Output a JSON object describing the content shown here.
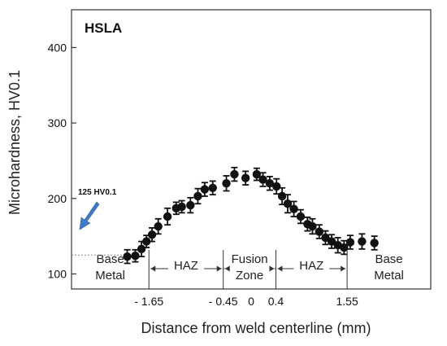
{
  "chart_data": {
    "type": "scatter",
    "title": "HSLA",
    "xlabel": "Distance from weld centerline (mm)",
    "ylabel": "Microhardness, HV0.1",
    "xlim": [
      -2.9,
      2.9
    ],
    "ylim": [
      80,
      450
    ],
    "y_ticks": [
      "100",
      "200",
      "300",
      "400"
    ],
    "x_tick_labels": [
      {
        "x": -1.65,
        "label": "- 1.65"
      },
      {
        "x": -0.45,
        "label": "- 0.45"
      },
      {
        "x": 0,
        "label": "0"
      },
      {
        "x": 0.4,
        "label": "0.4"
      },
      {
        "x": 1.55,
        "label": "1.55"
      }
    ],
    "regions": [
      {
        "name_lines": [
          "Base",
          "Metal"
        ],
        "from": -2.9,
        "to": -1.65
      },
      {
        "name_lines": [
          "HAZ"
        ],
        "from": -1.65,
        "to": -0.45
      },
      {
        "name_lines": [
          "Fusion",
          "Zone"
        ],
        "from": -0.45,
        "to": 0.4
      },
      {
        "name_lines": [
          "HAZ"
        ],
        "from": 0.4,
        "to": 1.55
      },
      {
        "name_lines": [
          "Base",
          "Metal"
        ],
        "from": 1.55,
        "to": 2.9
      }
    ],
    "reference_line": {
      "value": 125,
      "label": "125 HV0.1"
    },
    "points": [
      {
        "x": -2.0,
        "y": 123,
        "err": 9
      },
      {
        "x": -1.87,
        "y": 124,
        "err": 8
      },
      {
        "x": -1.77,
        "y": 133,
        "err": 10
      },
      {
        "x": -1.69,
        "y": 143,
        "err": 8
      },
      {
        "x": -1.6,
        "y": 152,
        "err": 9
      },
      {
        "x": -1.5,
        "y": 163,
        "err": 10
      },
      {
        "x": -1.35,
        "y": 176,
        "err": 11
      },
      {
        "x": -1.21,
        "y": 187,
        "err": 8
      },
      {
        "x": -1.12,
        "y": 189,
        "err": 8
      },
      {
        "x": -0.98,
        "y": 191,
        "err": 10
      },
      {
        "x": -0.86,
        "y": 203,
        "err": 10
      },
      {
        "x": -0.75,
        "y": 212,
        "err": 9
      },
      {
        "x": -0.62,
        "y": 214,
        "err": 9
      },
      {
        "x": -0.4,
        "y": 220,
        "err": 10
      },
      {
        "x": -0.27,
        "y": 232,
        "err": 9
      },
      {
        "x": -0.09,
        "y": 227,
        "err": 9
      },
      {
        "x": 0.09,
        "y": 232,
        "err": 8
      },
      {
        "x": 0.19,
        "y": 225,
        "err": 9
      },
      {
        "x": 0.3,
        "y": 220,
        "err": 9
      },
      {
        "x": 0.41,
        "y": 216,
        "err": 10
      },
      {
        "x": 0.5,
        "y": 203,
        "err": 11
      },
      {
        "x": 0.59,
        "y": 193,
        "err": 12
      },
      {
        "x": 0.69,
        "y": 186,
        "err": 10
      },
      {
        "x": 0.8,
        "y": 176,
        "err": 9
      },
      {
        "x": 0.91,
        "y": 166,
        "err": 9
      },
      {
        "x": 0.99,
        "y": 163,
        "err": 10
      },
      {
        "x": 1.1,
        "y": 156,
        "err": 9
      },
      {
        "x": 1.2,
        "y": 148,
        "err": 9
      },
      {
        "x": 1.3,
        "y": 143,
        "err": 9
      },
      {
        "x": 1.4,
        "y": 138,
        "err": 10
      },
      {
        "x": 1.5,
        "y": 135,
        "err": 9
      },
      {
        "x": 1.6,
        "y": 142,
        "err": 9
      },
      {
        "x": 1.79,
        "y": 143,
        "err": 10
      },
      {
        "x": 1.99,
        "y": 141,
        "err": 9
      }
    ],
    "grid": false,
    "colors": {
      "points": "#111111",
      "arrow": "#3f7bc4",
      "reference": "#888888"
    }
  }
}
